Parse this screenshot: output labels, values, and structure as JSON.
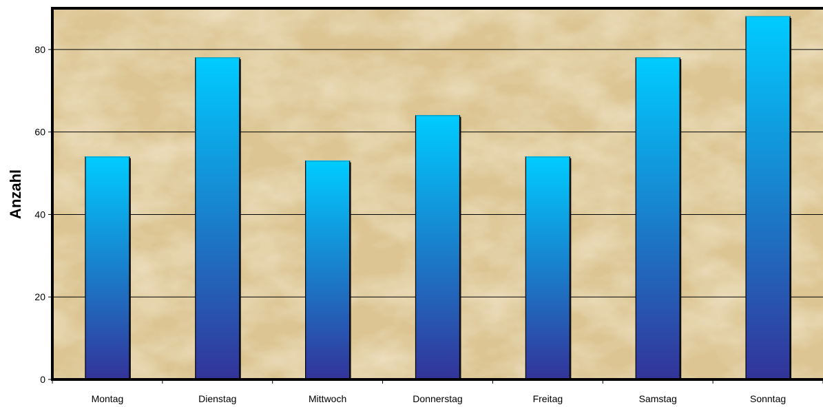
{
  "chart_data": {
    "type": "bar",
    "title": "",
    "xlabel": "",
    "ylabel": "Anzahl",
    "categories": [
      "Montag",
      "Dienstag",
      "Mittwoch",
      "Donnerstag",
      "Freitag",
      "Samstag",
      "Sonntag"
    ],
    "values": [
      54,
      78,
      53,
      64,
      54,
      78,
      88
    ],
    "ylim": [
      0,
      90
    ],
    "yticks": [
      "0",
      "20",
      "40",
      "60",
      "80"
    ],
    "grid": true,
    "legend": "none",
    "colors": {
      "bar_top": "#00ccff",
      "bar_bottom": "#333399",
      "background_light": "#f3e6c8",
      "background_dark": "#d9c08a",
      "gridline": "#000000",
      "axis": "#000000"
    }
  }
}
